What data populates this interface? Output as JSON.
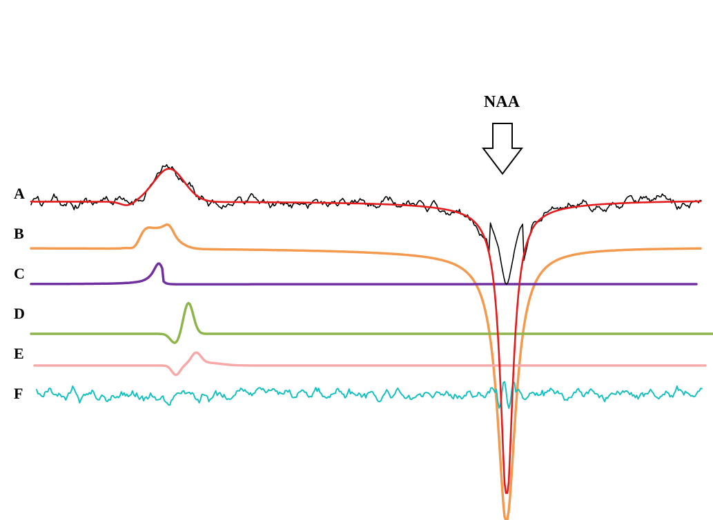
{
  "annotation": {
    "text": "NAA"
  },
  "traces": [
    {
      "label": "A",
      "color": "#000000"
    },
    {
      "label": "A",
      "color": "#e31a1c"
    },
    {
      "label": "B",
      "color": "#f49a4f"
    },
    {
      "label": "C",
      "color": "#7030a0"
    },
    {
      "label": "D",
      "color": "#8db54b"
    },
    {
      "label": "E",
      "color": "#f7a8a8"
    },
    {
      "label": "F",
      "color": "#17c0c0"
    }
  ]
}
